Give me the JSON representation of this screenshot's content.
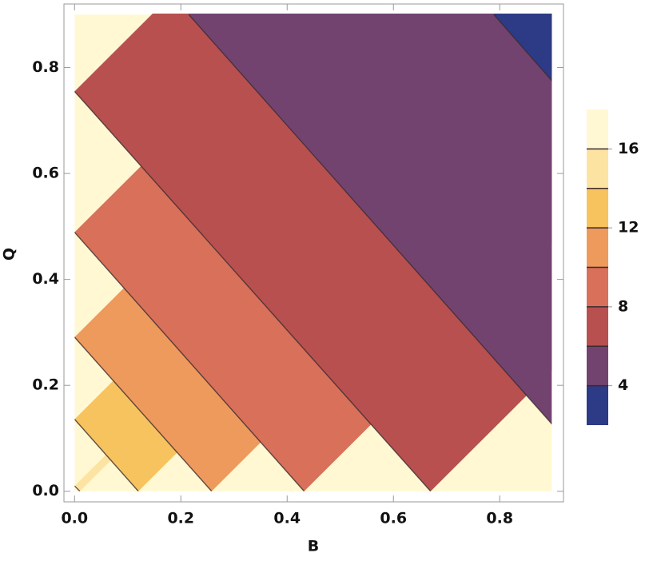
{
  "chart_data": {
    "type": "contour",
    "xlabel": "B",
    "ylabel": "Q",
    "xlim": [
      -0.02,
      0.92
    ],
    "ylim": [
      -0.02,
      0.92
    ],
    "domain": {
      "x": [
        0,
        0.9
      ],
      "y": [
        0,
        0.9
      ]
    },
    "xticks": [
      {
        "value": 0,
        "label": "0.0"
      },
      0.2,
      0.4,
      0.6,
      0.8
    ],
    "yticks": [
      {
        "value": 0,
        "label": "0.0"
      },
      0.2,
      0.4,
      0.6,
      0.8
    ],
    "levels": [
      2,
      4,
      6,
      8,
      10,
      12,
      14,
      16,
      18
    ],
    "colors": [
      "#2d3a85",
      "#734370",
      "#b85050",
      "#d8705a",
      "#ee9a5c",
      "#f7c35e",
      "#fde3a1",
      "#fff8d2"
    ],
    "colorbar_ticks": [
      4,
      8,
      12,
      16
    ],
    "contours": [
      {
        "level": 4,
        "x": [
          0.789,
          0.9
        ],
        "y": [
          0.9,
          0.773
        ]
      },
      {
        "level": 6,
        "x": [
          0.215,
          0.9
        ],
        "y": [
          0.9,
          0.125
        ]
      },
      {
        "level": 8,
        "x": [
          0,
          0.67
        ],
        "y": [
          0.755,
          0
        ]
      },
      {
        "level": 10,
        "x": [
          0,
          0.432
        ],
        "y": [
          0.489,
          0
        ]
      },
      {
        "level": 12,
        "x": [
          0,
          0.258
        ],
        "y": [
          0.291,
          0
        ]
      },
      {
        "level": 14,
        "x": [
          0,
          0.12
        ],
        "y": [
          0.136,
          0
        ]
      },
      {
        "level": 16,
        "x": [
          0,
          0.01
        ],
        "y": [
          0.01,
          0
        ]
      }
    ]
  }
}
